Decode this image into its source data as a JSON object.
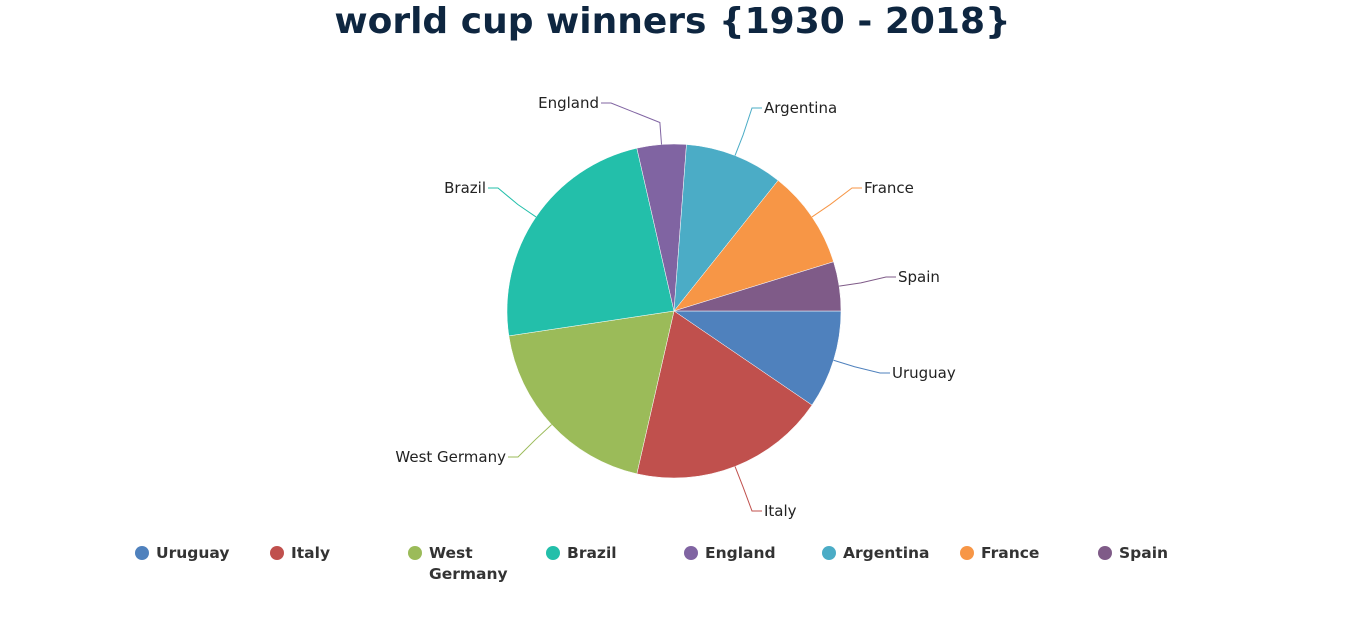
{
  "chart_data": {
    "type": "pie",
    "title": "world cup winners {1930 - 2018}",
    "categories": [
      "Uruguay",
      "Italy",
      "West Germany",
      "Brazil",
      "England",
      "Argentina",
      "France",
      "Spain"
    ],
    "values": [
      2,
      4,
      4,
      5,
      1,
      2,
      2,
      1
    ],
    "colors": [
      "#4f81bd",
      "#c0504d",
      "#9bbb59",
      "#23bfaa",
      "#8064a2",
      "#4bacc6",
      "#f79646",
      "#7f5b88"
    ],
    "legend_position": "bottom"
  }
}
